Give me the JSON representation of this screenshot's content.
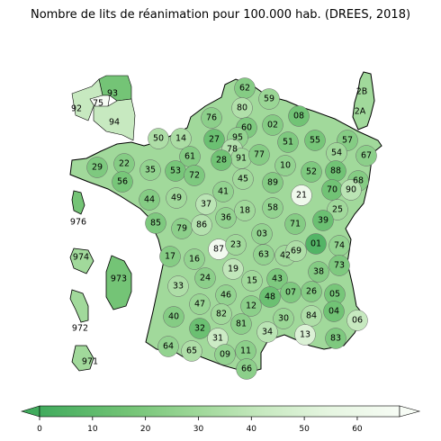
{
  "title": "Nombre de lits de réanimation pour 100.000 hab. (DREES, 2018)",
  "colorbar": {
    "ticks": [
      "0",
      "10",
      "20",
      "30",
      "40",
      "50",
      "60"
    ],
    "range": [
      0,
      68
    ],
    "extend": "both",
    "colormap": "Greens_r",
    "colors": [
      "#41ab5d",
      "#74c476",
      "#a1d99b",
      "#c7e9c0",
      "#e5f5e0",
      "#f7fcf5"
    ]
  },
  "colors": {
    "border": "#000000",
    "dept_border": "#555555",
    "sea": "#ffffff"
  },
  "departments": [
    {
      "code": "62",
      "value": 22
    },
    {
      "code": "59",
      "value": 28
    },
    {
      "code": "80",
      "value": 35
    },
    {
      "code": "76",
      "value": 24
    },
    {
      "code": "60",
      "value": 20
    },
    {
      "code": "02",
      "value": 22
    },
    {
      "code": "08",
      "value": 16
    },
    {
      "code": "50",
      "value": 34
    },
    {
      "code": "14",
      "value": 33
    },
    {
      "code": "27",
      "value": 14
    },
    {
      "code": "95",
      "value": 26
    },
    {
      "code": "78",
      "value": 36
    },
    {
      "code": "92",
      "value": 40
    },
    {
      "code": "91",
      "value": 30
    },
    {
      "code": "77",
      "value": 22
    },
    {
      "code": "51",
      "value": 20
    },
    {
      "code": "55",
      "value": 18
    },
    {
      "code": "57",
      "value": 22
    },
    {
      "code": "54",
      "value": 30
    },
    {
      "code": "67",
      "value": 24
    },
    {
      "code": "88",
      "value": 16
    },
    {
      "code": "68",
      "value": 22
    },
    {
      "code": "70",
      "value": 16
    },
    {
      "code": "90",
      "value": 38
    },
    {
      "code": "25",
      "value": 30
    },
    {
      "code": "52",
      "value": 20
    },
    {
      "code": "10",
      "value": 26
    },
    {
      "code": "89",
      "value": 22
    },
    {
      "code": "21",
      "value": 62
    },
    {
      "code": "39",
      "value": 14
    },
    {
      "code": "71",
      "value": 22
    },
    {
      "code": "58",
      "value": 26
    },
    {
      "code": "28",
      "value": 16
    },
    {
      "code": "45",
      "value": 30
    },
    {
      "code": "61",
      "value": 22
    },
    {
      "code": "53",
      "value": 18
    },
    {
      "code": "72",
      "value": 20
    },
    {
      "code": "41",
      "value": 26
    },
    {
      "code": "37",
      "value": 38
    },
    {
      "code": "36",
      "value": 26
    },
    {
      "code": "18",
      "value": 30
    },
    {
      "code": "29",
      "value": 20
    },
    {
      "code": "22",
      "value": 22
    },
    {
      "code": "56",
      "value": 18
    },
    {
      "code": "35",
      "value": 26
    },
    {
      "code": "44",
      "value": 22
    },
    {
      "code": "49",
      "value": 30
    },
    {
      "code": "85",
      "value": 20
    },
    {
      "code": "79",
      "value": 24
    },
    {
      "code": "86",
      "value": 36
    },
    {
      "code": "87",
      "value": 64
    },
    {
      "code": "23",
      "value": 30
    },
    {
      "code": "03",
      "value": 26
    },
    {
      "code": "63",
      "value": 26
    },
    {
      "code": "42",
      "value": 30
    },
    {
      "code": "69",
      "value": 34
    },
    {
      "code": "01",
      "value": 6
    },
    {
      "code": "74",
      "value": 26
    },
    {
      "code": "73",
      "value": 20
    },
    {
      "code": "38",
      "value": 22
    },
    {
      "code": "17",
      "value": 22
    },
    {
      "code": "16",
      "value": 26
    },
    {
      "code": "19",
      "value": 40
    },
    {
      "code": "15",
      "value": 30
    },
    {
      "code": "43",
      "value": 20
    },
    {
      "code": "24",
      "value": 24
    },
    {
      "code": "33",
      "value": 34
    },
    {
      "code": "46",
      "value": 26
    },
    {
      "code": "12",
      "value": 24
    },
    {
      "code": "48",
      "value": 14
    },
    {
      "code": "07",
      "value": 20
    },
    {
      "code": "26",
      "value": 22
    },
    {
      "code": "05",
      "value": 18
    },
    {
      "code": "04",
      "value": 16
    },
    {
      "code": "47",
      "value": 28
    },
    {
      "code": "82",
      "value": 30
    },
    {
      "code": "81",
      "value": 24
    },
    {
      "code": "30",
      "value": 28
    },
    {
      "code": "84",
      "value": 34
    },
    {
      "code": "13",
      "value": 50
    },
    {
      "code": "06",
      "value": 42
    },
    {
      "code": "83",
      "value": 20
    },
    {
      "code": "40",
      "value": 22
    },
    {
      "code": "32",
      "value": 14
    },
    {
      "code": "31",
      "value": 44
    },
    {
      "code": "34",
      "value": 38
    },
    {
      "code": "11",
      "value": 24
    },
    {
      "code": "64",
      "value": 26
    },
    {
      "code": "65",
      "value": 34
    },
    {
      "code": "09",
      "value": 26
    },
    {
      "code": "66",
      "value": 24
    },
    {
      "code": "2B",
      "value": 22
    },
    {
      "code": "2A",
      "value": 24
    },
    {
      "code": "93",
      "value": 20
    },
    {
      "code": "75",
      "value": 68
    },
    {
      "code": "94",
      "value": 34
    },
    {
      "code": "976",
      "value": 18
    },
    {
      "code": "974",
      "value": 24
    },
    {
      "code": "973",
      "value": 16
    },
    {
      "code": "972",
      "value": 28
    },
    {
      "code": "971",
      "value": 26
    }
  ]
}
